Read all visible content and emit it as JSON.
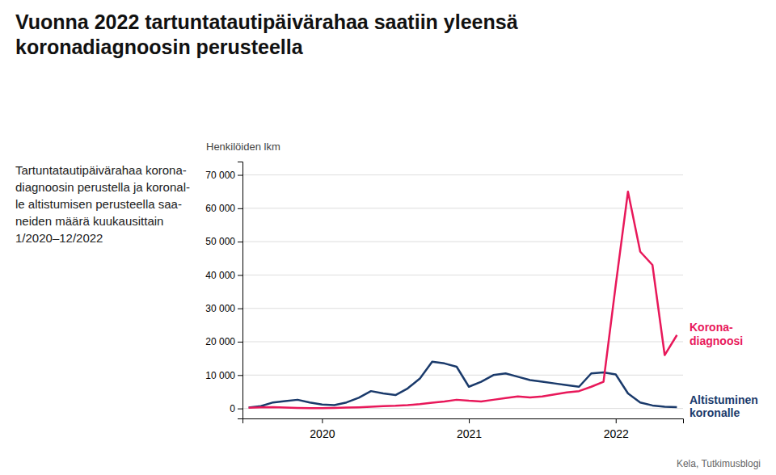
{
  "chart_data": {
    "type": "line",
    "title": "Vuonna 2022 tartuntatautipäivärahaa saatiin yleensä\nkoronadiagnoosin perusteella",
    "subtitle": "Tartuntatautipäivärahaa korona-\ndiagnoosin perustella ja koronal-\nle altistumisen perusteella saa-\nneiden määrä kuukausittain\n1/2020–12/2022",
    "ylabel": "Henkilöiden lkm",
    "source": "Kela, Tutkimusblogi",
    "categories": [
      null,
      null,
      null,
      null,
      null,
      null,
      "2020",
      null,
      null,
      null,
      null,
      null,
      null,
      null,
      null,
      null,
      null,
      null,
      "2021",
      null,
      null,
      null,
      null,
      null,
      null,
      null,
      null,
      null,
      null,
      null,
      "2022",
      null,
      null,
      null,
      null,
      null
    ],
    "series": [
      {
        "name": "Altistuminen\nkoronalle",
        "color": "#1a3a6b",
        "values": [
          300,
          700,
          1800,
          2200,
          2600,
          1800,
          1200,
          1000,
          1800,
          3200,
          5200,
          4500,
          4000,
          6000,
          9000,
          14000,
          13500,
          12500,
          6500,
          8000,
          10000,
          10500,
          9500,
          8500,
          8000,
          7500,
          7000,
          6500,
          10500,
          10800,
          10200,
          4500,
          1800,
          900,
          500,
          400
        ]
      },
      {
        "name": "Korona-\ndiagnoosi",
        "color": "#e8185a",
        "values": [
          200,
          300,
          400,
          250,
          150,
          100,
          100,
          150,
          250,
          350,
          500,
          700,
          800,
          1000,
          1300,
          1700,
          2100,
          2600,
          2300,
          2100,
          2600,
          3100,
          3600,
          3300,
          3600,
          4200,
          4800,
          5200,
          6500,
          8000,
          37000,
          65000,
          47000,
          43000,
          16000,
          22000
        ]
      }
    ],
    "ylim": [
      -3000,
      74000
    ],
    "yticks": [
      0,
      {
        "value": 10000,
        "label": "10 000"
      },
      {
        "value": 20000,
        "label": "20 000"
      },
      {
        "value": 30000,
        "label": "30 000"
      },
      {
        "value": 40000,
        "label": "40 000"
      },
      {
        "value": 50000,
        "label": "50 000"
      },
      {
        "value": 60000,
        "label": "60 000"
      },
      {
        "value": 70000,
        "label": "70 000"
      }
    ],
    "grid": true
  }
}
